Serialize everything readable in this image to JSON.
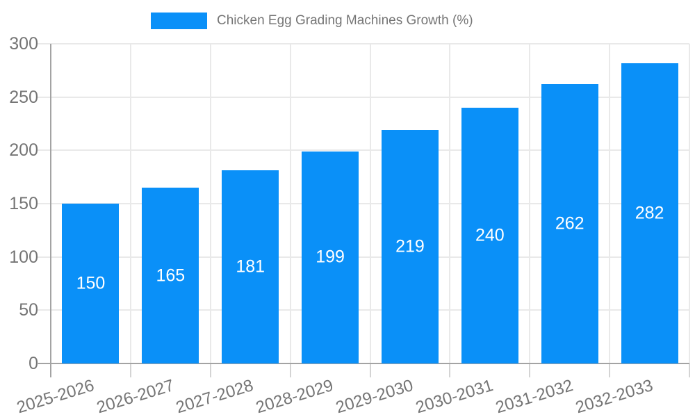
{
  "legend": {
    "label": "Chicken Egg Grading Machines Growth (%)"
  },
  "chart_data": {
    "type": "bar",
    "title": "Chicken Egg Grading Machines Growth (%)",
    "categories": [
      "2025-2026",
      "2026-2027",
      "2027-2028",
      "2028-2029",
      "2029-2030",
      "2030-2031",
      "2031-2032",
      "2032-2033"
    ],
    "values": [
      150,
      165,
      181,
      199,
      219,
      240,
      262,
      282
    ],
    "xlabel": "",
    "ylabel": "",
    "ylim": [
      0,
      300
    ],
    "yticks": [
      0,
      50,
      100,
      150,
      200,
      250,
      300
    ],
    "grid": true,
    "legend_position": "top-center",
    "bar_labels_inside": true,
    "colors": {
      "bar": "#0a90f8",
      "axis": "#a3a3a3",
      "grid": "#e9e9e9",
      "tick": "#d4d4d4",
      "label": "#757575",
      "value_label": "#ffffff"
    }
  }
}
